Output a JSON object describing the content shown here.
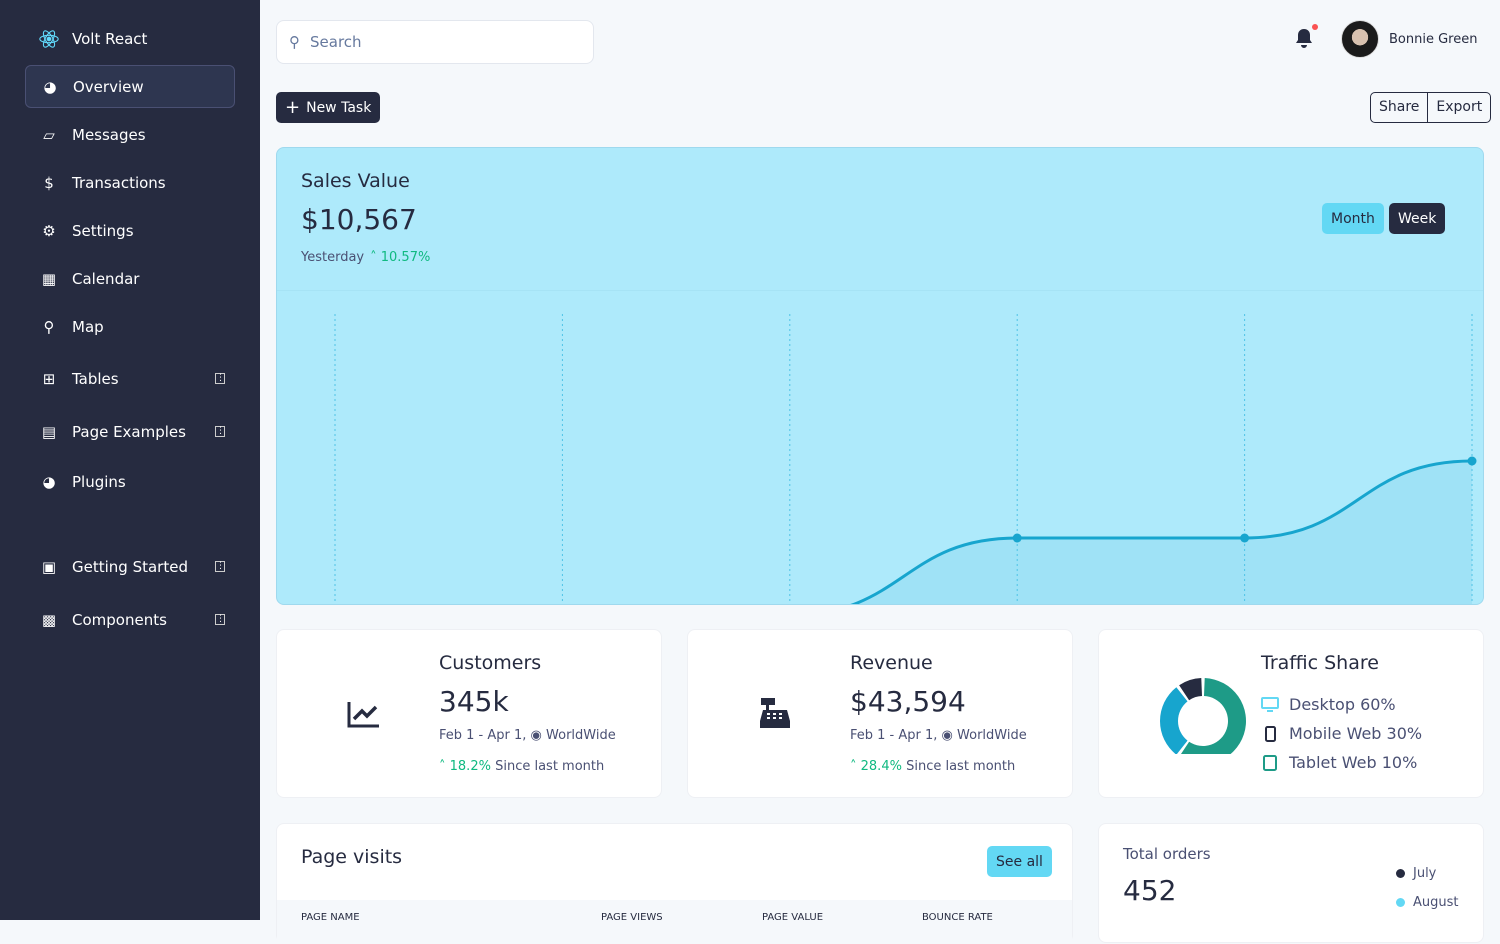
{
  "sidebar": {
    "brand": "Volt React",
    "items": [
      {
        "label": "Overview",
        "icon": "chart-pie-icon",
        "active": true
      },
      {
        "label": "Messages",
        "icon": "inbox-icon"
      },
      {
        "label": "Transactions",
        "icon": "hand-holding-usd-icon"
      },
      {
        "label": "Settings",
        "icon": "cog-icon"
      },
      {
        "label": "Calendar",
        "icon": "calendar-icon"
      },
      {
        "label": "Map",
        "icon": "map-pin-icon"
      },
      {
        "label": "Tables",
        "icon": "table-icon",
        "expandable": true
      },
      {
        "label": "Page Examples",
        "icon": "file-icon",
        "expandable": true
      },
      {
        "label": "Plugins",
        "icon": "chart-pie-icon"
      },
      {
        "label": "Getting Started",
        "icon": "book-icon",
        "expandable": true
      },
      {
        "label": "Components",
        "icon": "box-open-icon",
        "expandable": true
      }
    ]
  },
  "search": {
    "placeholder": "Search"
  },
  "user": {
    "name": "Bonnie Green"
  },
  "toolbar": {
    "new_task": "New Task",
    "share": "Share",
    "export": "Export"
  },
  "sales": {
    "title": "Sales Value",
    "value": "$10,567",
    "period": "Yesterday",
    "change": "10.57%",
    "month": "Month",
    "week": "Week"
  },
  "chart_data": {
    "type": "area",
    "values": [
      1,
      2,
      2,
      3,
      3,
      4
    ],
    "ylim": [
      0,
      4.2
    ],
    "color": "#17a5ce",
    "grid": "vertical-dashed"
  },
  "customers": {
    "title": "Customers",
    "value": "345k",
    "range": "Feb 1 - Apr 1,",
    "region": "WorldWide",
    "change": "18.2%",
    "since": "Since last month"
  },
  "revenue": {
    "title": "Revenue",
    "value": "$43,594",
    "range": "Feb 1 - Apr 1,",
    "region": "WorldWide",
    "change": "28.4%",
    "since": "Since last month"
  },
  "traffic": {
    "title": "Traffic Share",
    "items": [
      {
        "label": "Desktop 60%",
        "value": 60,
        "color": "#1e9b87"
      },
      {
        "label": "Mobile Web 30%",
        "value": 30,
        "color": "#17a5ce"
      },
      {
        "label": "Tablet Web 10%",
        "value": 10,
        "color": "#262b40"
      }
    ]
  },
  "page_visits": {
    "title": "Page visits",
    "see_all": "See all",
    "columns": [
      "PAGE NAME",
      "PAGE VIEWS",
      "PAGE VALUE",
      "BOUNCE RATE"
    ]
  },
  "orders": {
    "title": "Total orders",
    "value": "452",
    "legend": [
      "July",
      "August"
    ]
  }
}
